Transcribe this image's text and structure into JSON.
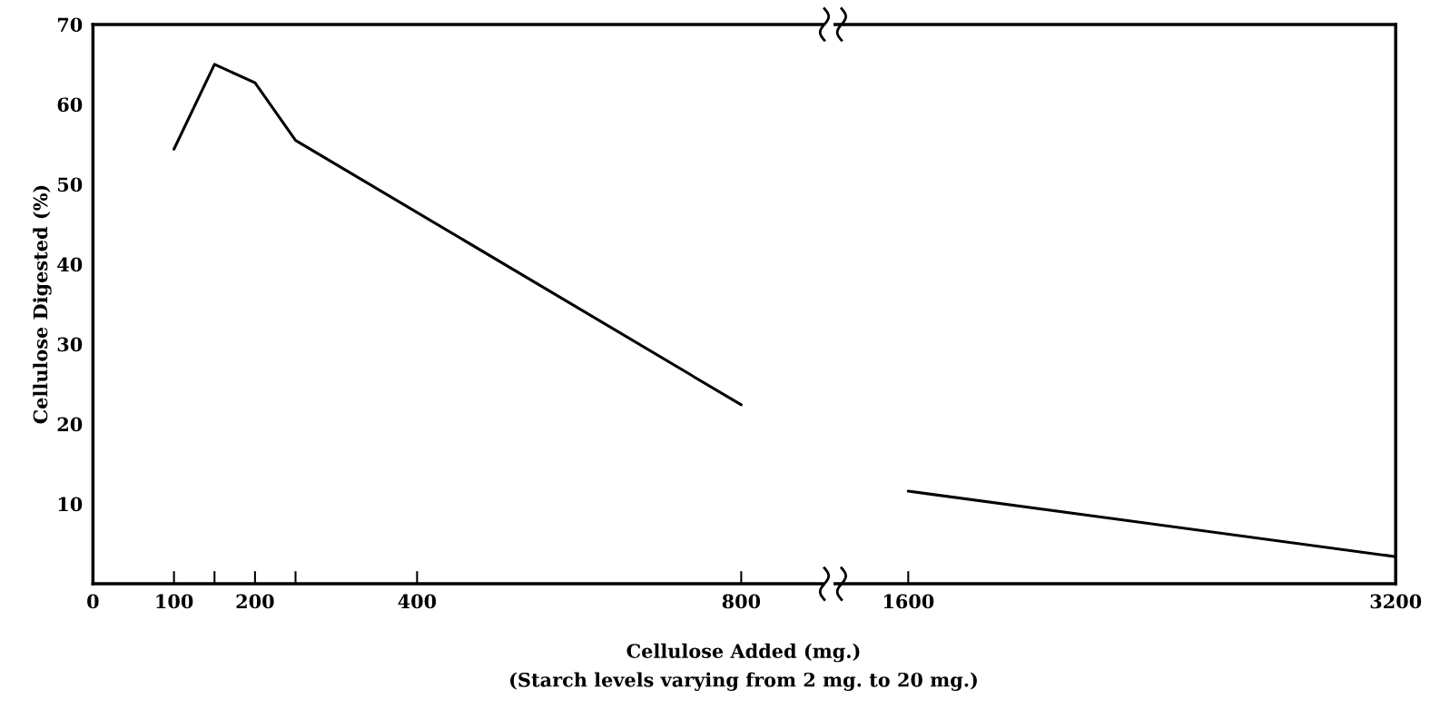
{
  "chart_data": [
    {
      "type": "line",
      "ylabel": "Cellulose Digested (%)",
      "xlabel": "Cellulose Added (mg.)",
      "annotations": [
        "(Starch levels varying from 2 mg. to 20 mg.)"
      ],
      "x": [
        100,
        150,
        200,
        250,
        800
      ],
      "values": [
        54.4,
        65,
        62.7,
        55.5,
        22.4
      ],
      "color": "#000000",
      "xlim": [
        0,
        900
      ],
      "xticks": [
        0,
        100,
        {
          "value": 150,
          "label": null
        },
        200,
        {
          "value": 250,
          "label": null
        },
        400,
        800
      ],
      "ylim": [
        0,
        70
      ],
      "yticks": [
        10,
        20,
        30,
        40,
        50,
        60,
        70
      ],
      "grid": false,
      "marker": "none",
      "line_style": "solid"
    },
    {
      "type": "line",
      "x": [
        1600,
        3200
      ],
      "values": [
        11.6,
        3.4
      ],
      "color": "#000000",
      "xlim": [
        1360,
        3200
      ],
      "xticks": [
        1600,
        3200
      ],
      "ylim": [
        0,
        70
      ],
      "yticks": [
        10,
        20,
        30,
        40,
        50,
        60,
        70
      ],
      "tick_labels": "x",
      "grid": false,
      "marker": "none",
      "line_style": "solid"
    }
  ]
}
